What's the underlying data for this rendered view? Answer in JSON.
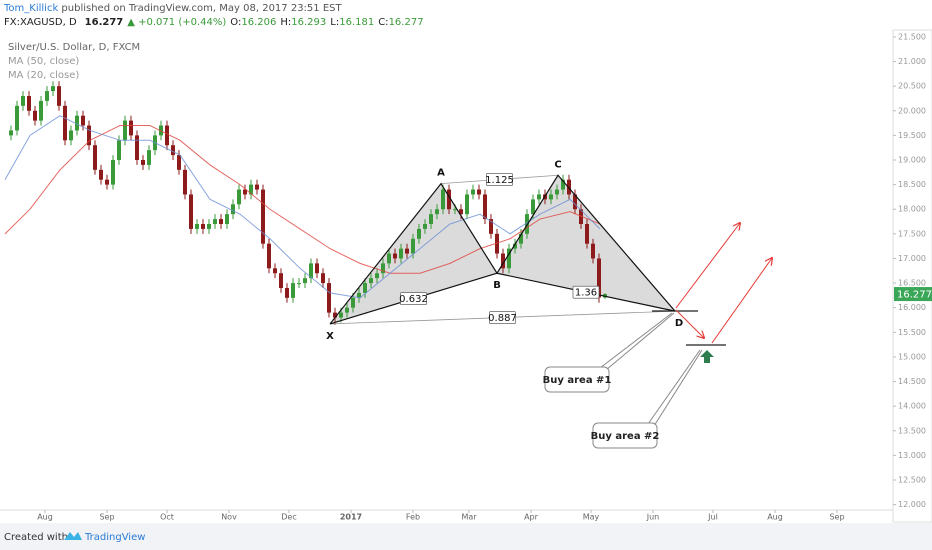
{
  "header": {
    "author": "Tom_Killick",
    "published": "published on TradingView.com, May 08, 2017 23:51 EST",
    "symbol": "FX:XAGUSD, D",
    "last": "16.277",
    "change": "▲ +0.071 (+0.44%)",
    "open": {
      "label": "O:",
      "value": "16.206"
    },
    "high": {
      "label": "H:",
      "value": "16.293"
    },
    "low": {
      "label": "L:",
      "value": "16.181"
    },
    "close": {
      "label": "C:",
      "value": "16.277"
    }
  },
  "chart_data": {
    "type": "candlestick",
    "title": "Silver/U.S. Dollar, D, FXCM",
    "up_color": "#3a9a3a",
    "down_color": "#8e1b1b",
    "x": [
      -17,
      -14,
      -11,
      -8,
      -5,
      -2,
      1,
      4,
      7,
      10,
      13,
      16,
      19,
      22,
      25,
      28,
      31,
      34,
      37,
      40,
      43,
      46,
      49,
      52,
      55,
      58,
      61,
      64,
      67,
      70,
      73,
      76,
      79,
      82,
      85,
      88,
      91,
      94,
      97,
      100,
      103,
      106,
      109,
      112,
      115,
      118,
      121,
      124,
      127,
      130,
      133,
      136,
      139,
      142,
      145,
      148,
      151,
      154,
      157,
      160,
      163,
      166,
      169,
      172,
      175,
      178,
      181,
      184,
      187,
      190,
      193,
      196,
      199,
      202,
      205,
      208,
      211,
      214,
      217,
      220,
      223,
      226,
      229,
      232,
      235,
      238,
      241,
      244,
      247,
      250,
      253,
      256,
      259,
      262,
      265,
      268,
      271,
      274,
      277,
      280
    ],
    "open": [
      19.5,
      19.6,
      20.1,
      20.3,
      20.0,
      19.8,
      20.2,
      20.4,
      20.5,
      20.1,
      19.4,
      19.6,
      19.9,
      19.7,
      19.3,
      18.8,
      18.6,
      18.5,
      19.0,
      19.4,
      19.8,
      19.5,
      19.0,
      18.9,
      19.2,
      19.5,
      19.7,
      19.3,
      19.1,
      18.8,
      18.3,
      17.6,
      17.7,
      17.6,
      17.7,
      17.8,
      17.7,
      17.9,
      18.1,
      18.4,
      18.3,
      18.5,
      18.4,
      17.3,
      16.8,
      16.7,
      16.4,
      16.2,
      16.5,
      16.5,
      16.6,
      16.9,
      16.7,
      16.5,
      15.9,
      15.8,
      15.9,
      16.0,
      16.2,
      16.3,
      16.5,
      16.6,
      16.7,
      16.9,
      17.1,
      17.0,
      17.2,
      17.1,
      17.4,
      17.6,
      17.7,
      17.9,
      18.0,
      18.4,
      18.0,
      18.0,
      17.9,
      18.3,
      18.4,
      18.3,
      17.8,
      17.5,
      17.1,
      16.8,
      17.2,
      17.3,
      17.5,
      17.9,
      18.2,
      18.3,
      18.2,
      18.3,
      18.4,
      18.6,
      18.3,
      18.0,
      17.7,
      17.3,
      17.0,
      16.206
    ],
    "high": [
      19.7,
      20.2,
      20.4,
      20.4,
      20.1,
      20.3,
      20.5,
      20.6,
      20.6,
      20.2,
      19.7,
      20.0,
      20.0,
      19.8,
      19.4,
      18.9,
      18.7,
      19.1,
      19.5,
      19.9,
      19.9,
      19.6,
      19.1,
      19.3,
      19.6,
      19.8,
      19.8,
      19.4,
      19.2,
      18.9,
      18.4,
      17.8,
      17.8,
      17.8,
      17.9,
      17.9,
      18.0,
      18.2,
      18.5,
      18.5,
      18.6,
      18.6,
      18.5,
      17.4,
      16.9,
      16.8,
      16.5,
      16.6,
      16.6,
      16.7,
      17.0,
      17.0,
      16.8,
      16.6,
      16.0,
      16.0,
      16.1,
      16.3,
      16.4,
      16.6,
      16.7,
      16.8,
      17.0,
      17.2,
      17.2,
      17.3,
      17.3,
      17.5,
      17.7,
      17.8,
      18.0,
      18.1,
      18.5,
      18.5,
      18.1,
      18.1,
      18.4,
      18.5,
      18.5,
      18.4,
      17.9,
      17.6,
      17.2,
      17.3,
      17.4,
      17.6,
      18.0,
      18.3,
      18.4,
      18.4,
      18.4,
      18.5,
      18.7,
      18.7,
      18.4,
      18.1,
      17.8,
      17.4,
      17.1,
      16.293
    ],
    "low": [
      19.4,
      19.5,
      20.0,
      19.9,
      19.7,
      19.7,
      20.1,
      20.3,
      20.0,
      19.3,
      19.3,
      19.5,
      19.6,
      19.2,
      18.7,
      18.5,
      18.4,
      18.4,
      18.9,
      19.3,
      19.4,
      18.9,
      18.8,
      18.8,
      19.1,
      19.4,
      19.2,
      19.0,
      18.7,
      18.2,
      17.5,
      17.5,
      17.5,
      17.5,
      17.6,
      17.6,
      17.6,
      17.8,
      18.0,
      18.2,
      18.2,
      18.3,
      17.2,
      16.7,
      16.6,
      16.3,
      16.1,
      16.1,
      16.4,
      16.4,
      16.5,
      16.6,
      16.4,
      15.8,
      15.65,
      15.7,
      15.8,
      15.9,
      16.1,
      16.2,
      16.4,
      16.5,
      16.6,
      16.8,
      16.9,
      16.9,
      17.0,
      17.0,
      17.3,
      17.5,
      17.6,
      17.8,
      17.9,
      17.9,
      17.9,
      17.8,
      17.8,
      18.2,
      18.2,
      17.7,
      17.4,
      17.0,
      16.7,
      16.7,
      17.1,
      17.2,
      17.4,
      17.8,
      18.1,
      18.1,
      18.1,
      18.2,
      18.3,
      18.2,
      17.9,
      17.6,
      17.2,
      16.9,
      16.1,
      16.181
    ],
    "close": [
      19.6,
      20.1,
      20.3,
      20.0,
      19.8,
      20.2,
      20.4,
      20.5,
      20.1,
      19.4,
      19.6,
      19.9,
      19.7,
      19.3,
      18.8,
      18.6,
      18.5,
      19.0,
      19.4,
      19.8,
      19.5,
      19.0,
      18.9,
      19.2,
      19.5,
      19.7,
      19.3,
      19.1,
      18.8,
      18.3,
      17.6,
      17.7,
      17.6,
      17.7,
      17.8,
      17.7,
      17.9,
      18.1,
      18.4,
      18.3,
      18.5,
      18.4,
      17.3,
      16.8,
      16.7,
      16.4,
      16.2,
      16.5,
      16.5,
      16.6,
      16.9,
      16.7,
      16.5,
      15.9,
      15.8,
      15.9,
      16.0,
      16.2,
      16.3,
      16.5,
      16.6,
      16.7,
      16.9,
      17.1,
      17.0,
      17.2,
      17.1,
      17.4,
      17.6,
      17.7,
      17.9,
      18.0,
      18.4,
      18.0,
      18.0,
      17.9,
      18.3,
      18.4,
      18.3,
      17.8,
      17.5,
      17.1,
      16.8,
      17.2,
      17.3,
      17.5,
      17.9,
      18.2,
      18.3,
      18.2,
      18.3,
      18.4,
      18.6,
      18.3,
      18.0,
      17.7,
      17.3,
      17.0,
      16.206,
      16.277
    ],
    "series": [
      {
        "name": "MA (50, close)",
        "color": "#e0443c",
        "x": [
          -20,
          -7.5,
          7.5,
          22.5,
          37.5,
          52.5,
          67.5,
          82.5,
          97.5,
          112.5,
          127.5,
          142.5,
          157.5,
          172.5,
          187.5,
          202.5,
          217.5,
          232.5,
          247.5,
          262.5,
          277.5
        ],
        "values": [
          17.5,
          18.0,
          18.8,
          19.4,
          19.7,
          19.7,
          19.4,
          18.9,
          18.5,
          18.0,
          17.6,
          17.2,
          16.9,
          16.7,
          16.7,
          16.9,
          17.2,
          17.4,
          17.8,
          17.95,
          17.7
        ]
      },
      {
        "name": "MA (20, close)",
        "color": "#6b8fd6",
        "x": [
          -20,
          -7.5,
          7.5,
          22.5,
          37.5,
          52.5,
          67.5,
          82.5,
          97.5,
          112.5,
          127.5,
          142.5,
          157.5,
          172.5,
          187.5,
          202.5,
          217.5,
          232.5,
          247.5,
          262.5,
          277.5
        ],
        "values": [
          18.6,
          19.5,
          19.9,
          19.6,
          19.4,
          19.4,
          19.1,
          18.2,
          17.9,
          17.4,
          16.8,
          16.3,
          16.2,
          16.7,
          17.2,
          17.7,
          17.9,
          17.5,
          17.9,
          18.2,
          17.6
        ]
      }
    ],
    "xlim": [
      -22.5,
      424
    ],
    "xticks": [
      {
        "value": 0,
        "label": "Aug"
      },
      {
        "value": 31,
        "label": "Sep"
      },
      {
        "value": 61,
        "label": "Oct"
      },
      {
        "value": 92,
        "label": "Nov"
      },
      {
        "value": 122,
        "label": "Dec"
      },
      {
        "value": 153,
        "label": "2017"
      },
      {
        "value": 184,
        "label": "Feb"
      },
      {
        "value": 212,
        "label": "Mar"
      },
      {
        "value": 243,
        "label": "Apr"
      },
      {
        "value": 273,
        "label": "May"
      },
      {
        "value": 304,
        "label": "Jun"
      },
      {
        "value": 334,
        "label": "Jul"
      },
      {
        "value": 365,
        "label": "Aug"
      },
      {
        "value": 396,
        "label": "Sep"
      }
    ],
    "ylim": [
      11.85,
      21.6
    ],
    "yticks": [
      {
        "value": 12,
        "label": "12.000"
      },
      {
        "value": 12.5,
        "label": "12.500"
      },
      {
        "value": 13,
        "label": "13.000"
      },
      {
        "value": 13.5,
        "label": "13.500"
      },
      {
        "value": 14,
        "label": "14.000"
      },
      {
        "value": 14.5,
        "label": "14.500"
      },
      {
        "value": 15,
        "label": "15.000"
      },
      {
        "value": 15.5,
        "label": "15.500"
      },
      {
        "value": 16,
        "label": "16.000"
      },
      {
        "value": 16.5,
        "label": "16.500"
      },
      {
        "value": 17,
        "label": "17.000"
      },
      {
        "value": 17.5,
        "label": "17.500"
      },
      {
        "value": 18,
        "label": "18.000"
      },
      {
        "value": 18.5,
        "label": "18.500"
      },
      {
        "value": 19,
        "label": "19.000"
      },
      {
        "value": 19.5,
        "label": "19.500"
      },
      {
        "value": 20,
        "label": "20.000"
      },
      {
        "value": 20.5,
        "label": "20.500"
      },
      {
        "value": 21,
        "label": "21.000"
      },
      {
        "value": 21.5,
        "label": "21.500"
      }
    ],
    "pattern": {
      "points": [
        {
          "label": "X",
          "x": 142.5,
          "y": 15.67
        },
        {
          "label": "A",
          "x": 198,
          "y": 18.52
        },
        {
          "label": "B",
          "x": 226,
          "y": 16.7
        },
        {
          "label": "C",
          "x": 256.5,
          "y": 18.69
        },
        {
          "label": "D",
          "x": 315,
          "y": 15.93
        }
      ],
      "ratios": [
        "1.125",
        "0.632",
        "0.887",
        "1.36"
      ]
    },
    "annotations": [
      "Buy area #1",
      "Buy area #2"
    ]
  },
  "footer": {
    "created": "Created with",
    "brand": "TradingView"
  }
}
